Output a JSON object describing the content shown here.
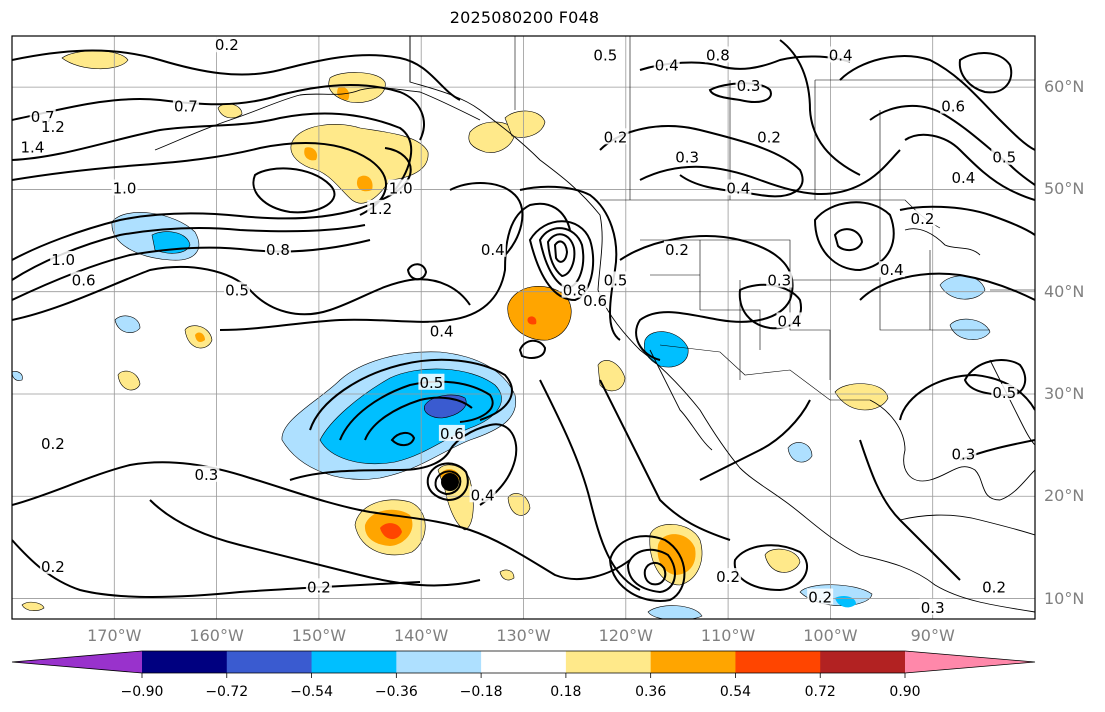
{
  "title": "2025080200 F048",
  "map": {
    "projection": "PlateCarree",
    "extent_lon": [
      -180,
      -80
    ],
    "extent_lat": [
      8,
      65
    ],
    "lat_ticks": [
      {
        "value": 60,
        "label": "60°N"
      },
      {
        "value": 50,
        "label": "50°N"
      },
      {
        "value": 40,
        "label": "40°N"
      },
      {
        "value": 30,
        "label": "30°N"
      },
      {
        "value": 20,
        "label": "20°N"
      },
      {
        "value": 10,
        "label": "10°N"
      }
    ],
    "lon_ticks": [
      {
        "value": -170,
        "label": "170°W"
      },
      {
        "value": -160,
        "label": "160°W"
      },
      {
        "value": -150,
        "label": "150°W"
      },
      {
        "value": -140,
        "label": "140°W"
      },
      {
        "value": -130,
        "label": "130°W"
      },
      {
        "value": -120,
        "label": "120°W"
      },
      {
        "value": -110,
        "label": "110°W"
      },
      {
        "value": -100,
        "label": "100°W"
      },
      {
        "value": -90,
        "label": "90°W"
      }
    ],
    "grid": true
  },
  "colorbar": {
    "orientation": "horizontal",
    "extend": "both",
    "levels": [
      -0.9,
      -0.72,
      -0.54,
      -0.36,
      -0.18,
      0.18,
      0.36,
      0.54,
      0.72,
      0.9
    ],
    "tick_labels": [
      "−0.90",
      "−0.72",
      "−0.54",
      "−0.36",
      "−0.18",
      "0.18",
      "0.36",
      "0.54",
      "0.72",
      "0.90"
    ],
    "colors": [
      "#9932cc",
      "#000080",
      "#3a5bd0",
      "#00bfff",
      "#aee0ff",
      "#ffffff",
      "#ffe98a",
      "#ffa500",
      "#ff4500",
      "#b22222",
      "#ff88aa"
    ]
  },
  "contour_labels": [
    {
      "text": "0.2",
      "lon": -159,
      "lat": 64
    },
    {
      "text": "0.5",
      "lon": -122,
      "lat": 63
    },
    {
      "text": "0.4",
      "lon": -116,
      "lat": 62
    },
    {
      "text": "0.8",
      "lon": -111,
      "lat": 63
    },
    {
      "text": "0.3",
      "lon": -108,
      "lat": 60
    },
    {
      "text": "0.4",
      "lon": -99,
      "lat": 63
    },
    {
      "text": "0.6",
      "lon": -88,
      "lat": 58
    },
    {
      "text": "0.5",
      "lon": -83,
      "lat": 53
    },
    {
      "text": "0.4",
      "lon": -87,
      "lat": 51
    },
    {
      "text": "0.7",
      "lon": -177,
      "lat": 57
    },
    {
      "text": "1.2",
      "lon": -176,
      "lat": 56
    },
    {
      "text": "1.4",
      "lon": -178,
      "lat": 54
    },
    {
      "text": "0.7",
      "lon": -163,
      "lat": 58
    },
    {
      "text": "1.0",
      "lon": -169,
      "lat": 50
    },
    {
      "text": "1.2",
      "lon": -144,
      "lat": 48
    },
    {
      "text": "1.0",
      "lon": -142,
      "lat": 50
    },
    {
      "text": "0.2",
      "lon": -121,
      "lat": 55
    },
    {
      "text": "0.3",
      "lon": -114,
      "lat": 53
    },
    {
      "text": "0.2",
      "lon": -106,
      "lat": 55
    },
    {
      "text": "0.4",
      "lon": -109,
      "lat": 50
    },
    {
      "text": "0.8",
      "lon": -154,
      "lat": 44
    },
    {
      "text": "0.6",
      "lon": -173,
      "lat": 41
    },
    {
      "text": "1.0",
      "lon": -175,
      "lat": 43
    },
    {
      "text": "0.5",
      "lon": -158,
      "lat": 40
    },
    {
      "text": "0.4",
      "lon": -133,
      "lat": 44
    },
    {
      "text": "0.8",
      "lon": -125,
      "lat": 40
    },
    {
      "text": "0.6",
      "lon": -123,
      "lat": 39
    },
    {
      "text": "0.5",
      "lon": -121,
      "lat": 41
    },
    {
      "text": "0.2",
      "lon": -115,
      "lat": 44
    },
    {
      "text": "0.3",
      "lon": -105,
      "lat": 41
    },
    {
      "text": "0.4",
      "lon": -94,
      "lat": 42
    },
    {
      "text": "0.2",
      "lon": -91,
      "lat": 47
    },
    {
      "text": "0.4",
      "lon": -138,
      "lat": 36
    },
    {
      "text": "0.4",
      "lon": -104,
      "lat": 37
    },
    {
      "text": "0.5",
      "lon": -139,
      "lat": 31
    },
    {
      "text": "0.6",
      "lon": -137,
      "lat": 26
    },
    {
      "text": "0.4",
      "lon": -134,
      "lat": 20
    },
    {
      "text": "0.3",
      "lon": -161,
      "lat": 22
    },
    {
      "text": "0.2",
      "lon": -176,
      "lat": 25
    },
    {
      "text": "0.3",
      "lon": -87,
      "lat": 24
    },
    {
      "text": "0.5",
      "lon": -83,
      "lat": 30
    },
    {
      "text": "0.2",
      "lon": -110,
      "lat": 12
    },
    {
      "text": "0.2",
      "lon": -101,
      "lat": 10
    },
    {
      "text": "0.2",
      "lon": -150,
      "lat": 11
    },
    {
      "text": "0.2",
      "lon": -176,
      "lat": 13
    },
    {
      "text": "0.3",
      "lon": -90,
      "lat": 9
    },
    {
      "text": "0.2",
      "lon": -84,
      "lat": 11
    }
  ],
  "legend": "none"
}
